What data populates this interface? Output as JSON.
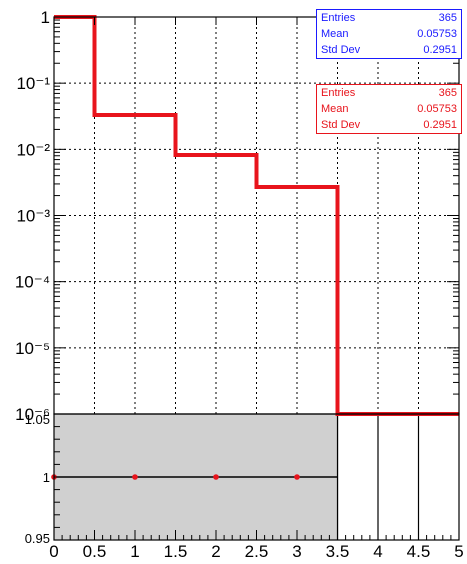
{
  "colors": {
    "histogram": "#e8141c",
    "stats_blue": "#1a1aff",
    "stats_red": "#e8141c",
    "ratio_fill": "#d0d0d0",
    "ratio_points": "#e8141c",
    "axis": "#000000"
  },
  "stats": [
    {
      "color_key": "stats_blue",
      "rows": [
        {
          "label": "Entries",
          "value": "365"
        },
        {
          "label": "Mean",
          "value": "0.05753"
        },
        {
          "label": "Std Dev",
          "value": "0.2951"
        }
      ]
    },
    {
      "color_key": "stats_red",
      "rows": [
        {
          "label": "Entries",
          "value": "365"
        },
        {
          "label": "Mean",
          "value": "0.05753"
        },
        {
          "label": "Std Dev",
          "value": "0.2951"
        }
      ]
    }
  ],
  "chart_data": [
    {
      "type": "histogram",
      "yscale": "log",
      "xlim": [
        0,
        5
      ],
      "ylim": [
        1e-06,
        1
      ],
      "y_tick_labels": [
        "1",
        "10⁻¹",
        "10⁻²",
        "10⁻³",
        "10⁻⁴",
        "10⁻⁵",
        "10⁻⁶"
      ],
      "grid": true,
      "bin_edges": [
        0,
        0.5,
        1.5,
        2.5,
        3.5,
        5
      ],
      "values": [
        1,
        0.033,
        0.0082,
        0.0027,
        1e-06
      ]
    },
    {
      "type": "scatter",
      "xlim": [
        0,
        5
      ],
      "ylim": [
        0.95,
        1.05
      ],
      "x_tick_labels": [
        "0",
        "0.5",
        "1",
        "1.5",
        "2",
        "2.5",
        "3",
        "3.5",
        "4",
        "4.5",
        "5"
      ],
      "y_tick_labels": [
        "0.95",
        "1",
        "1.05"
      ],
      "grid": true,
      "band": {
        "x": [
          0,
          3.5
        ],
        "y": [
          0.95,
          1.05
        ]
      },
      "points": [
        {
          "x": 0,
          "y": 1
        },
        {
          "x": 1,
          "y": 1
        },
        {
          "x": 2,
          "y": 1
        },
        {
          "x": 3,
          "y": 1
        }
      ]
    }
  ]
}
